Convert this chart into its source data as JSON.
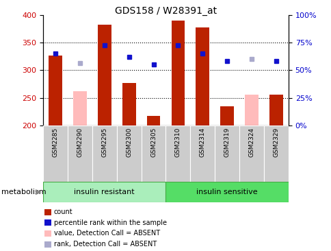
{
  "title": "GDS158 / W28391_at",
  "samples": [
    "GSM2285",
    "GSM2290",
    "GSM2295",
    "GSM2300",
    "GSM2305",
    "GSM2310",
    "GSM2314",
    "GSM2319",
    "GSM2324",
    "GSM2329"
  ],
  "red_bar_values": [
    327,
    null,
    382,
    277,
    217,
    390,
    378,
    235,
    null,
    256
  ],
  "pink_bar_values": [
    null,
    262,
    null,
    null,
    null,
    null,
    null,
    null,
    256,
    null
  ],
  "blue_sq_values": [
    330,
    null,
    345,
    324,
    310,
    345,
    330,
    317,
    null,
    317
  ],
  "ltblue_sq_values": [
    null,
    313,
    null,
    null,
    null,
    null,
    null,
    null,
    320,
    null
  ],
  "red_color": "#bb2200",
  "pink_color": "#ffbbbb",
  "blue_color": "#1111cc",
  "ltblue_color": "#aaaacc",
  "ylim_left": [
    200,
    400
  ],
  "ylim_right": [
    0,
    100
  ],
  "yticks_left": [
    200,
    250,
    300,
    350,
    400
  ],
  "yticks_right": [
    0,
    25,
    50,
    75,
    100
  ],
  "yticklabels_right": [
    "0%",
    "25%",
    "50%",
    "75%",
    "100%"
  ],
  "group1_label": "insulin resistant",
  "group2_label": "insulin sensitive",
  "group_color_1": "#aaeebb",
  "group_color_2": "#55dd66",
  "cell_color": "#cccccc",
  "legend_items": [
    {
      "label": "count",
      "color": "#bb2200"
    },
    {
      "label": "percentile rank within the sample",
      "color": "#1111cc"
    },
    {
      "label": "value, Detection Call = ABSENT",
      "color": "#ffbbbb"
    },
    {
      "label": "rank, Detection Call = ABSENT",
      "color": "#aaaacc"
    }
  ],
  "ylabel_left_color": "#cc0000",
  "ylabel_right_color": "#0000cc",
  "metabolism_label": "metabolism"
}
